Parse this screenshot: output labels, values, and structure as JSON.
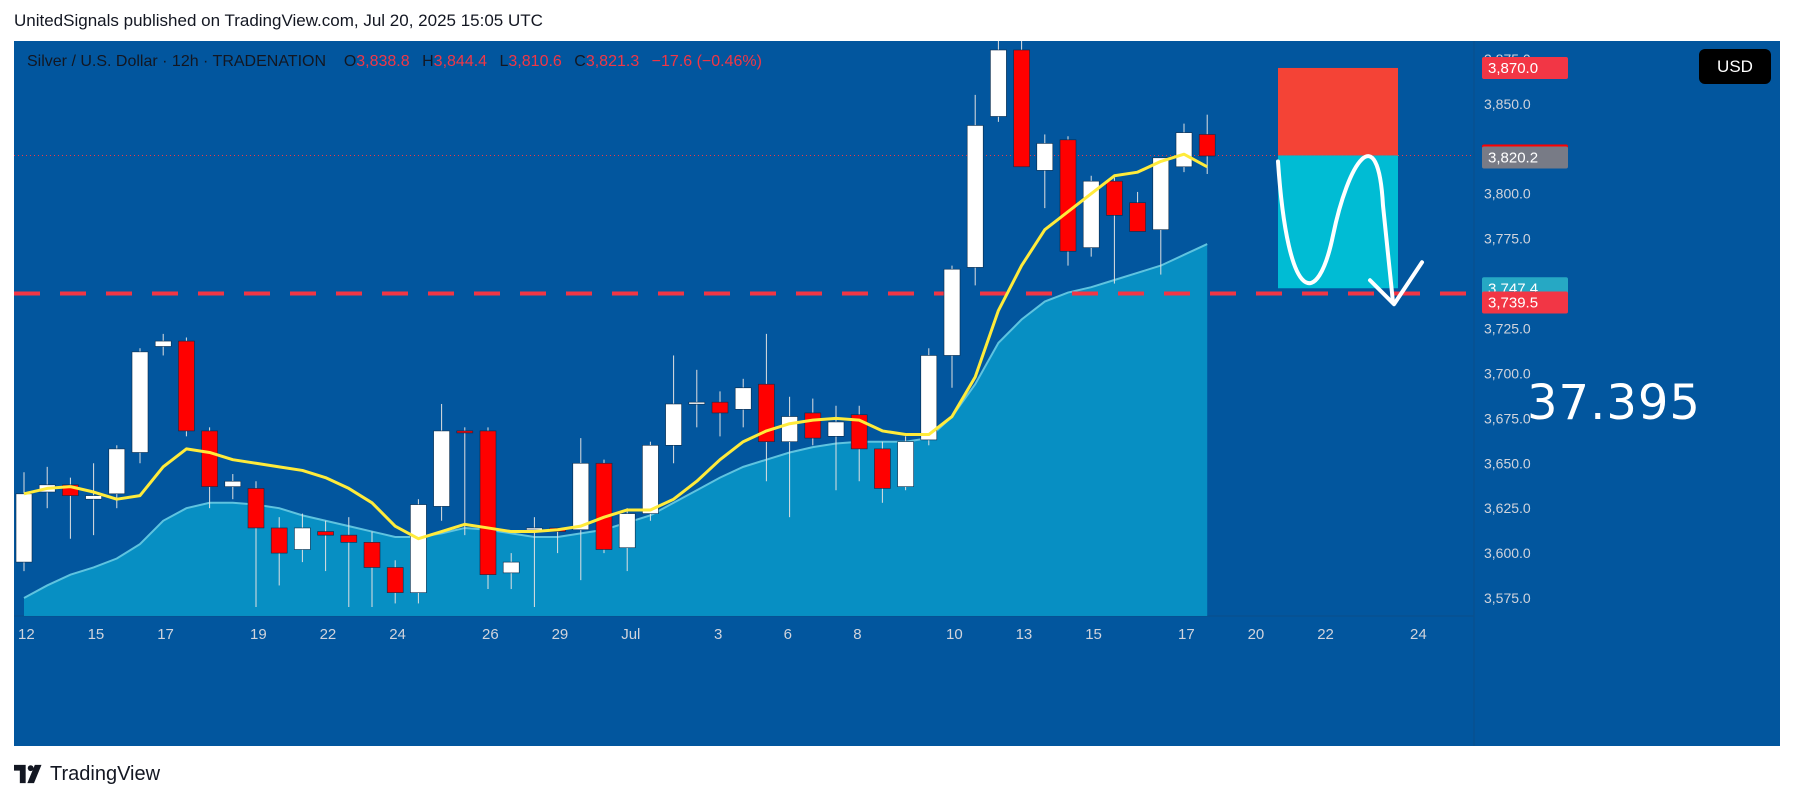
{
  "header": {
    "publisher_line": "UnitedSignals published on TradingView.com, Jul 20, 2025 15:05 UTC"
  },
  "legend": {
    "symbol": "Silver / U.S. Dollar · 12h · TRADENATION",
    "open_label": "O",
    "open": "3,838.8",
    "high_label": "H",
    "high": "3,844.4",
    "low_label": "L",
    "low": "3,810.6",
    "close_label": "C",
    "close": "3,821.3",
    "change": "−17.6 (−0.46%)"
  },
  "currency_button": "USD",
  "annotation_label": "37.395",
  "footer": {
    "brand": "TradingView",
    "logo_icon": "tradingview-logo-icon"
  },
  "colors": {
    "background": "#02569e",
    "up_candle": "#ffffff",
    "down_candle": "#ff0000",
    "ma_fast": "#ffeb3b",
    "ma_slow_fill": "#0aa3cf",
    "dashed_level": "#f23645",
    "stop_zone": "#f44336",
    "target_zone": "#00bcd4"
  },
  "price_tags": [
    {
      "label": "3,870.0",
      "value": 3870.0,
      "bg": "#f23645"
    },
    {
      "label": "3,821.3",
      "value": 3821.3,
      "bg": "#ff0000"
    },
    {
      "label": "3,820.2",
      "value": 3820.2,
      "bg": "#787b86"
    },
    {
      "label": "3,747.4",
      "value": 3747.4,
      "bg": "#26a8c4"
    },
    {
      "label": "3,739.5",
      "value": 3739.5,
      "bg": "#f23645"
    }
  ],
  "chart_data": {
    "type": "candlestick",
    "title": "Silver / U.S. Dollar · 12h · TRADENATION",
    "timeframe": "12h",
    "ylim": [
      3565,
      3885
    ],
    "y_ticks": [
      3575,
      3600,
      3625,
      3650,
      3675,
      3700,
      3725,
      3750,
      3775,
      3800,
      3825,
      3850,
      3875
    ],
    "y_tick_labels": [
      "3,575.0",
      "3,600.0",
      "3,625.0",
      "3,650.0",
      "3,675.0",
      "3,700.0",
      "3,725.0",
      "3,750.0",
      "3,775.0",
      "3,800.0",
      "3,825.0",
      "3,850.0",
      "3,875.0"
    ],
    "x_tick_labels": [
      {
        "label": "12",
        "bar": 0
      },
      {
        "label": "15",
        "bar": 3
      },
      {
        "label": "17",
        "bar": 6
      },
      {
        "label": "19",
        "bar": 10
      },
      {
        "label": "22",
        "bar": 13
      },
      {
        "label": "24",
        "bar": 16
      },
      {
        "label": "26",
        "bar": 20
      },
      {
        "label": "29",
        "bar": 23
      },
      {
        "label": "Jul",
        "bar": 26
      },
      {
        "label": "3",
        "bar": 30
      },
      {
        "label": "6",
        "bar": 33
      },
      {
        "label": "8",
        "bar": 36
      },
      {
        "label": "10",
        "bar": 40
      },
      {
        "label": "13",
        "bar": 43
      },
      {
        "label": "15",
        "bar": 46
      },
      {
        "label": "17",
        "bar": 50
      },
      {
        "label": "20",
        "bar": 53
      },
      {
        "label": "22",
        "bar": 56
      },
      {
        "label": "24",
        "bar": 60
      }
    ],
    "candles": [
      {
        "o": 3595,
        "h": 3645,
        "l": 3590,
        "c": 3633
      },
      {
        "o": 3634,
        "h": 3648,
        "l": 3625,
        "c": 3638
      },
      {
        "o": 3638,
        "h": 3642,
        "l": 3608,
        "c": 3632
      },
      {
        "o": 3630,
        "h": 3650,
        "l": 3610,
        "c": 3632
      },
      {
        "o": 3633,
        "h": 3660,
        "l": 3625,
        "c": 3658
      },
      {
        "o": 3656,
        "h": 3714,
        "l": 3650,
        "c": 3712
      },
      {
        "o": 3715,
        "h": 3722,
        "l": 3710,
        "c": 3718
      },
      {
        "o": 3718,
        "h": 3720,
        "l": 3665,
        "c": 3668
      },
      {
        "o": 3668,
        "h": 3670,
        "l": 3625,
        "c": 3637
      },
      {
        "o": 3637,
        "h": 3644,
        "l": 3630,
        "c": 3640
      },
      {
        "o": 3636,
        "h": 3640,
        "l": 3570,
        "c": 3614
      },
      {
        "o": 3614,
        "h": 3620,
        "l": 3582,
        "c": 3600
      },
      {
        "o": 3602,
        "h": 3622,
        "l": 3595,
        "c": 3614
      },
      {
        "o": 3612,
        "h": 3618,
        "l": 3590,
        "c": 3610
      },
      {
        "o": 3610,
        "h": 3620,
        "l": 3570,
        "c": 3606
      },
      {
        "o": 3606,
        "h": 3612,
        "l": 3570,
        "c": 3592
      },
      {
        "o": 3592,
        "h": 3596,
        "l": 3572,
        "c": 3578
      },
      {
        "o": 3578,
        "h": 3630,
        "l": 3572,
        "c": 3627
      },
      {
        "o": 3626,
        "h": 3683,
        "l": 3618,
        "c": 3668
      },
      {
        "o": 3668,
        "h": 3670,
        "l": 3610,
        "c": 3667
      },
      {
        "o": 3668,
        "h": 3670,
        "l": 3580,
        "c": 3588
      },
      {
        "o": 3589,
        "h": 3600,
        "l": 3580,
        "c": 3595
      },
      {
        "o": 3614,
        "h": 3620,
        "l": 3570,
        "c": 3614
      },
      {
        "o": 3614,
        "h": 3614,
        "l": 3600,
        "c": 3612
      },
      {
        "o": 3613,
        "h": 3664,
        "l": 3585,
        "c": 3650
      },
      {
        "o": 3650,
        "h": 3652,
        "l": 3600,
        "c": 3602
      },
      {
        "o": 3603,
        "h": 3625,
        "l": 3590,
        "c": 3622
      },
      {
        "o": 3622,
        "h": 3662,
        "l": 3618,
        "c": 3660
      },
      {
        "o": 3660,
        "h": 3710,
        "l": 3650,
        "c": 3683
      },
      {
        "o": 3683,
        "h": 3702,
        "l": 3670,
        "c": 3684
      },
      {
        "o": 3684,
        "h": 3690,
        "l": 3665,
        "c": 3678
      },
      {
        "o": 3680,
        "h": 3697,
        "l": 3670,
        "c": 3692
      },
      {
        "o": 3694,
        "h": 3722,
        "l": 3640,
        "c": 3662
      },
      {
        "o": 3662,
        "h": 3687,
        "l": 3620,
        "c": 3676
      },
      {
        "o": 3678,
        "h": 3686,
        "l": 3660,
        "c": 3664
      },
      {
        "o": 3665,
        "h": 3682,
        "l": 3635,
        "c": 3673
      },
      {
        "o": 3677,
        "h": 3682,
        "l": 3640,
        "c": 3658
      },
      {
        "o": 3658,
        "h": 3662,
        "l": 3628,
        "c": 3636
      },
      {
        "o": 3637,
        "h": 3665,
        "l": 3635,
        "c": 3662
      },
      {
        "o": 3663,
        "h": 3714,
        "l": 3660,
        "c": 3710
      },
      {
        "o": 3710,
        "h": 3760,
        "l": 3692,
        "c": 3758
      },
      {
        "o": 3759,
        "h": 3855,
        "l": 3749,
        "c": 3838
      },
      {
        "o": 3843,
        "h": 3890,
        "l": 3840,
        "c": 3880
      },
      {
        "o": 3880,
        "h": 3886,
        "l": 3815,
        "c": 3815
      },
      {
        "o": 3813,
        "h": 3833,
        "l": 3792,
        "c": 3828
      },
      {
        "o": 3830,
        "h": 3832,
        "l": 3760,
        "c": 3768
      },
      {
        "o": 3770,
        "h": 3810,
        "l": 3765,
        "c": 3807
      },
      {
        "o": 3807,
        "h": 3809,
        "l": 3750,
        "c": 3788
      },
      {
        "o": 3795,
        "h": 3801,
        "l": 3780,
        "c": 3779
      },
      {
        "o": 3780,
        "h": 3819,
        "l": 3755,
        "c": 3820
      },
      {
        "o": 3815,
        "h": 3839,
        "l": 3812,
        "c": 3834
      },
      {
        "o": 3833,
        "h": 3844,
        "l": 3811,
        "c": 3821
      }
    ],
    "ma_fast": [
      3633,
      3636,
      3637,
      3634,
      3630,
      3632,
      3648,
      3658,
      3656,
      3652,
      3650,
      3648,
      3646,
      3642,
      3636,
      3628,
      3615,
      3608,
      3612,
      3616,
      3614,
      3612,
      3612,
      3613,
      3615,
      3620,
      3624,
      3624,
      3630,
      3640,
      3652,
      3662,
      3668,
      3672,
      3674,
      3675,
      3674,
      3668,
      3666,
      3666,
      3676,
      3698,
      3735,
      3760,
      3780,
      3790,
      3800,
      3810,
      3812,
      3818,
      3822,
      3815
    ],
    "ma_slow": [
      3575,
      3582,
      3588,
      3592,
      3597,
      3605,
      3618,
      3625,
      3628,
      3628,
      3627,
      3625,
      3621,
      3618,
      3615,
      3612,
      3609,
      3609,
      3611,
      3614,
      3613,
      3611,
      3609,
      3609,
      3611,
      3613,
      3617,
      3621,
      3628,
      3635,
      3642,
      3648,
      3652,
      3656,
      3659,
      3661,
      3662,
      3662,
      3662,
      3664,
      3676,
      3694,
      3717,
      3730,
      3740,
      3745,
      3748,
      3752,
      3756,
      3760,
      3766,
      3772
    ],
    "levels": {
      "dashed_support": 3744.5,
      "short_entry": 3821.3,
      "stop_loss": 3870.0,
      "take_profit": 3747.4
    },
    "annotations": [
      {
        "type": "short-position",
        "entry": 3821.3,
        "stop": 3870.0,
        "target": 3747.4
      },
      {
        "type": "text",
        "text": "37.395"
      },
      {
        "type": "arrow-path",
        "direction": "down"
      }
    ]
  }
}
